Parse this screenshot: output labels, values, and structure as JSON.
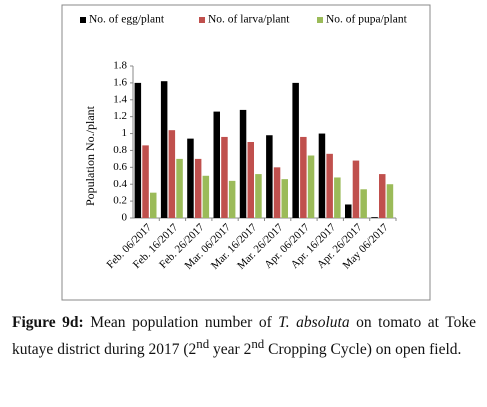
{
  "chart_data": {
    "type": "bar",
    "y_label": "Population No./plant",
    "categories": [
      "Feb. 06/2017",
      "Feb. 16/2017",
      "Feb. 26/2017",
      "Mar. 06/2017",
      "Mar. 16/2017",
      "Mar. 26/2017",
      "Apr. 06/2017",
      "Apr. 16/2017",
      "Apr. 26/2017",
      "May 06/2017"
    ],
    "series": [
      {
        "name": "No. of egg/plant",
        "color": "#000000",
        "values": [
          1.6,
          1.62,
          0.94,
          1.26,
          1.28,
          0.98,
          1.6,
          1.0,
          0.16,
          0.01
        ]
      },
      {
        "name": "No. of larva/plant",
        "color": "#c0504d",
        "values": [
          0.86,
          1.04,
          0.7,
          0.96,
          0.9,
          0.6,
          0.96,
          0.76,
          0.68,
          0.52
        ]
      },
      {
        "name": "No. of pupa/plant",
        "color": "#9bbb59",
        "values": [
          0.3,
          0.7,
          0.5,
          0.44,
          0.52,
          0.46,
          0.74,
          0.48,
          0.34,
          0.4
        ]
      }
    ],
    "ylim": [
      0,
      1.8
    ],
    "yticks": [
      0,
      0.2,
      0.4,
      0.6,
      0.8,
      1,
      1.2,
      1.4,
      1.6,
      1.8
    ],
    "legend": "top"
  },
  "caption": {
    "label": "Figure 9d:",
    "text1": " Mean population number of ",
    "species": "T. absoluta",
    "text2": " on tomato at Toke kutaye district during 2017 (2",
    "sup1": "nd",
    "text3": " year 2",
    "sup2": "nd",
    "text4": " Cropping Cycle) on open field."
  }
}
